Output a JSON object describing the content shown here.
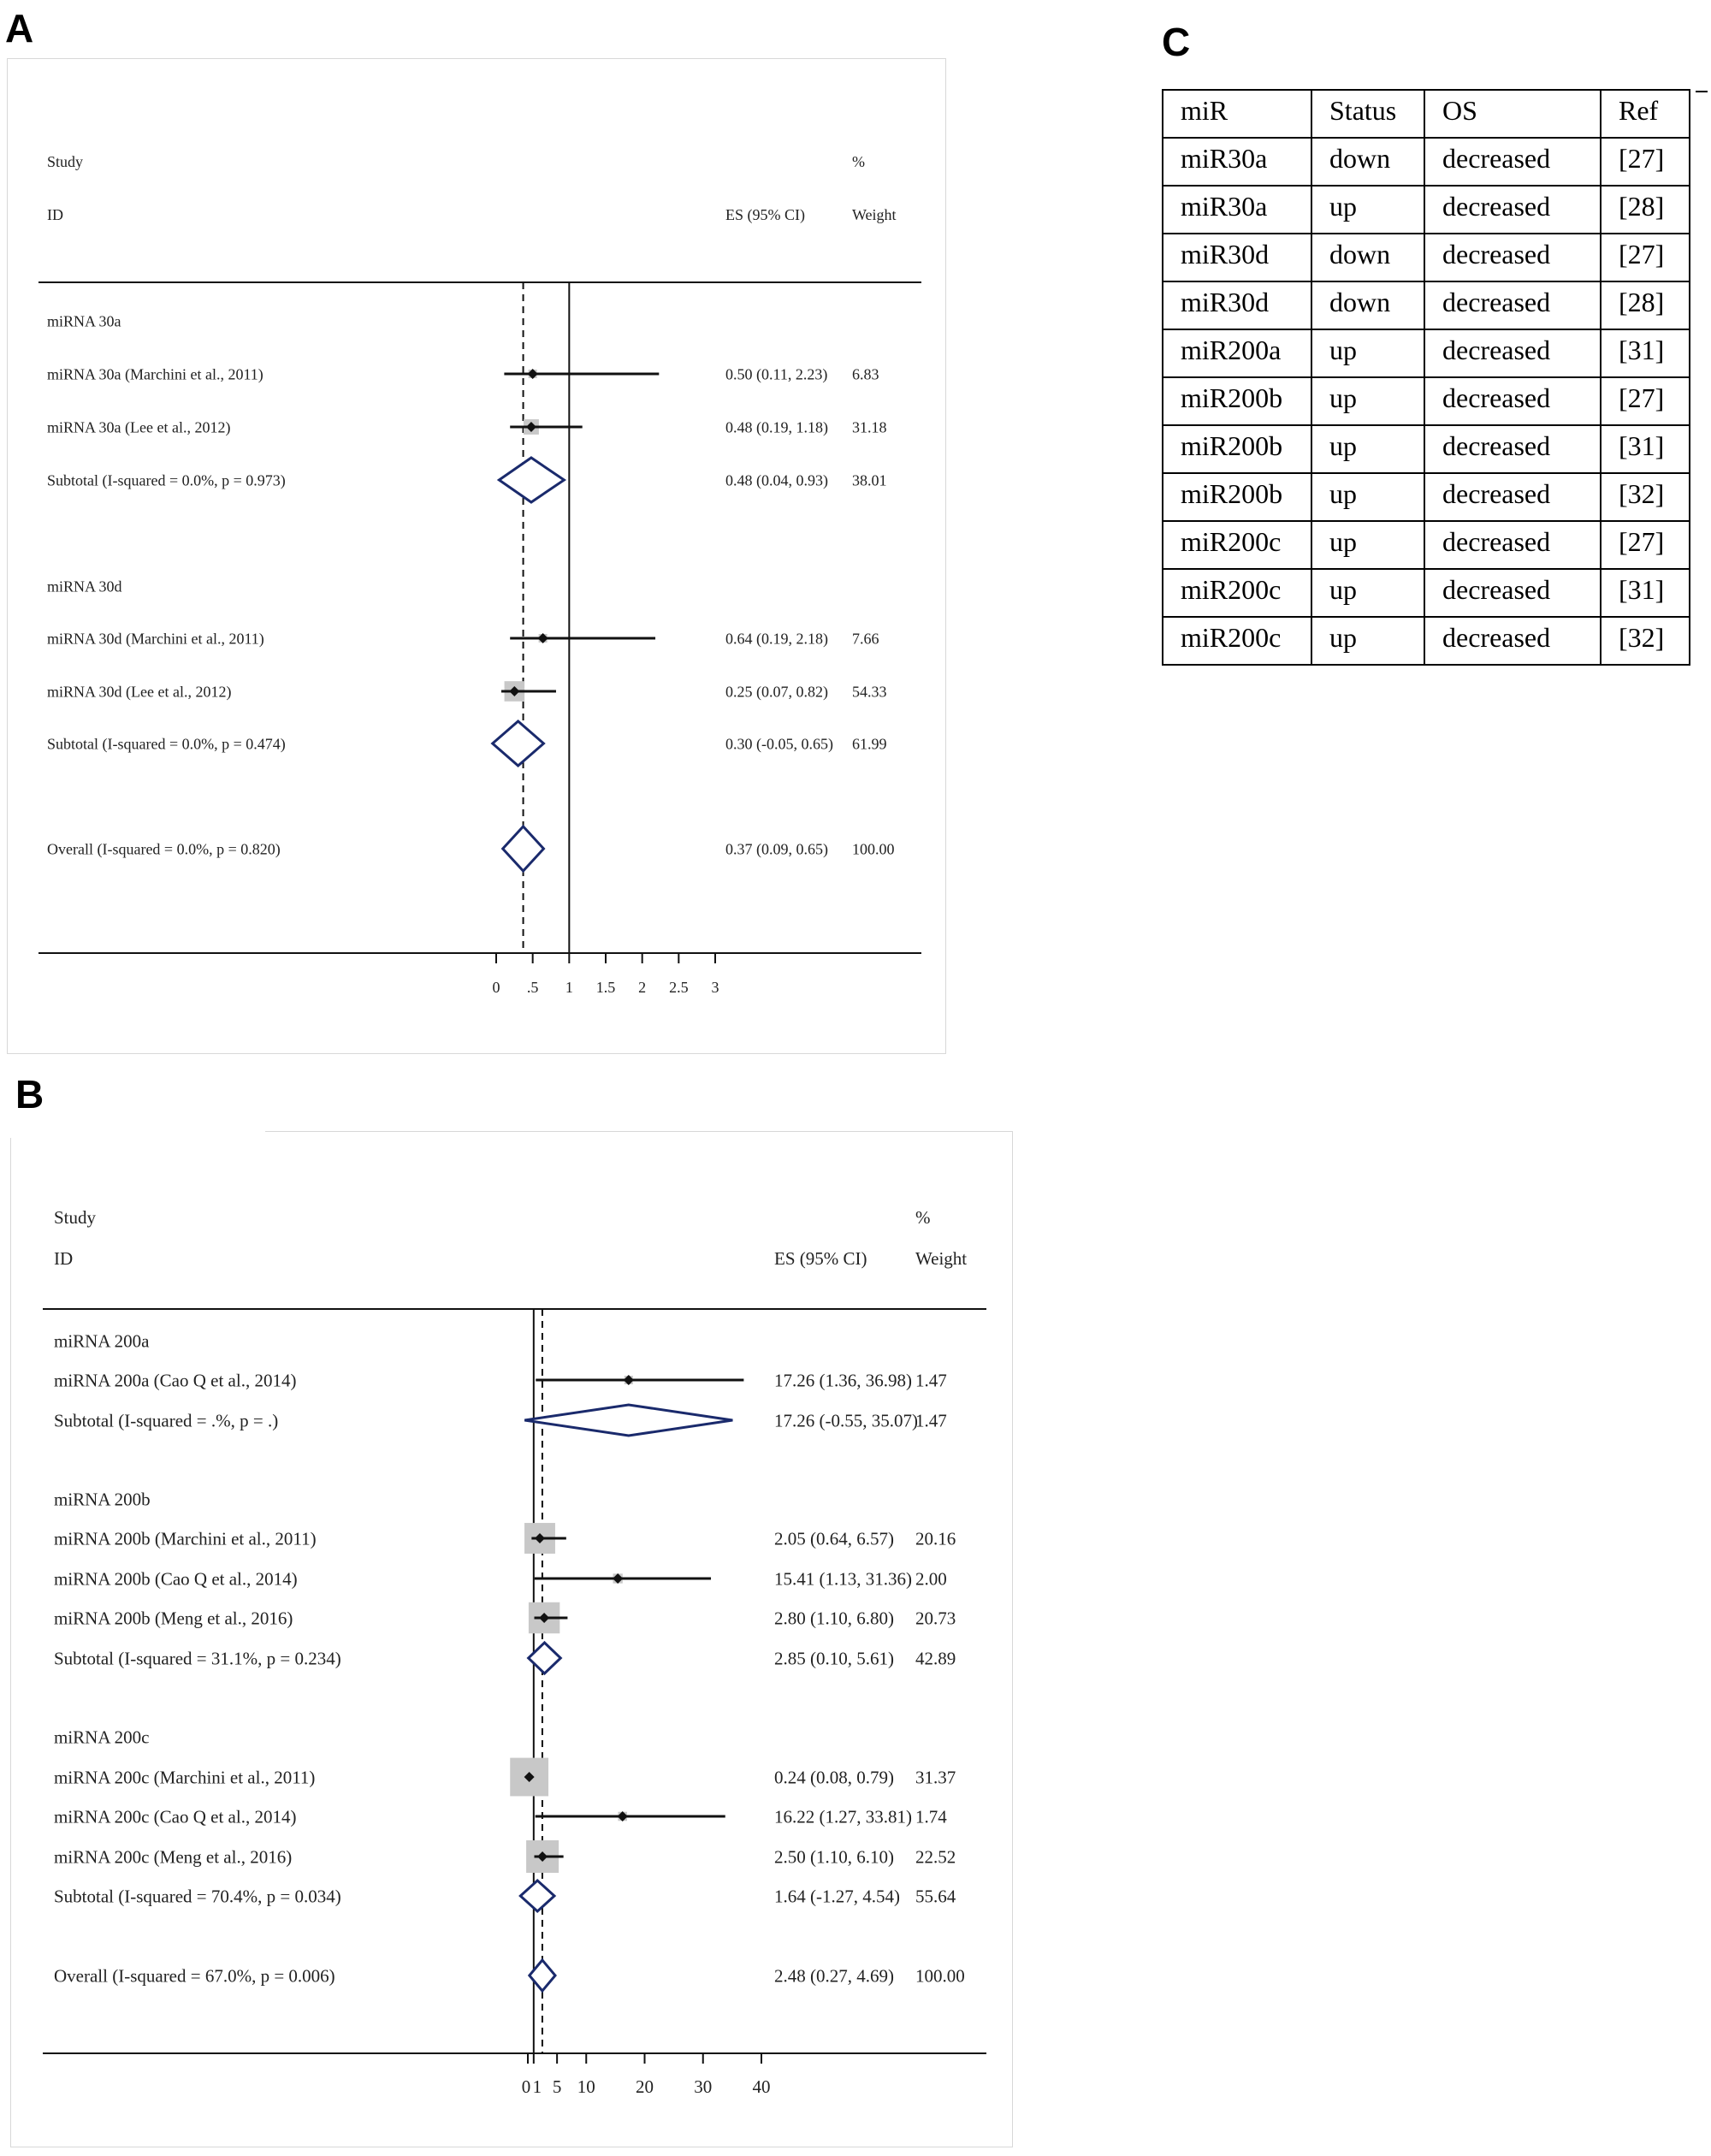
{
  "panels": {
    "a": "A",
    "b": "B",
    "c": "C"
  },
  "chart_data": [
    {
      "type": "forest",
      "panel": "A",
      "header": {
        "study": "Study",
        "id": "ID",
        "es": "ES (95% CI)",
        "pct": "%",
        "weight": "Weight"
      },
      "xlim": [
        0,
        3
      ],
      "null_value": 1,
      "overall_es": 0.37,
      "ticks": [
        0,
        0.5,
        1,
        1.5,
        2,
        2.5,
        3
      ],
      "tick_labels": [
        "0",
        ".5",
        "1",
        "1.5",
        "2",
        "2.5",
        "3"
      ],
      "rows": [
        {
          "kind": "group",
          "label": "miRNA 30a"
        },
        {
          "kind": "study",
          "label": "miRNA 30a (Marchini et al., 2011)",
          "es": 0.5,
          "lo": 0.11,
          "hi": 2.23,
          "es_text": "0.50 (0.11, 2.23)",
          "weight": "6.83"
        },
        {
          "kind": "study",
          "label": "miRNA 30a (Lee et al., 2012)",
          "es": 0.48,
          "lo": 0.19,
          "hi": 1.18,
          "es_text": "0.48 (0.19, 1.18)",
          "weight": "31.18"
        },
        {
          "kind": "subtotal",
          "label": "Subtotal  (I-squared = 0.0%, p = 0.973)",
          "es": 0.48,
          "lo": 0.04,
          "hi": 0.93,
          "es_text": "0.48 (0.04, 0.93)",
          "weight": "38.01"
        },
        {
          "kind": "group",
          "label": "miRNA 30d"
        },
        {
          "kind": "study",
          "label": "miRNA 30d (Marchini et al., 2011)",
          "es": 0.64,
          "lo": 0.19,
          "hi": 2.18,
          "es_text": "0.64 (0.19, 2.18)",
          "weight": "7.66"
        },
        {
          "kind": "study",
          "label": "miRNA 30d (Lee et al., 2012)",
          "es": 0.25,
          "lo": 0.07,
          "hi": 0.82,
          "es_text": "0.25 (0.07, 0.82)",
          "weight": "54.33"
        },
        {
          "kind": "subtotal",
          "label": "Subtotal  (I-squared = 0.0%, p = 0.474)",
          "es": 0.3,
          "lo": -0.05,
          "hi": 0.65,
          "es_text": "0.30 (-0.05, 0.65)",
          "weight": "61.99"
        },
        {
          "kind": "subtotal",
          "label": "Overall  (I-squared = 0.0%, p = 0.820)",
          "es": 0.37,
          "lo": 0.09,
          "hi": 0.65,
          "es_text": "0.37 (0.09, 0.65)",
          "weight": "100.00"
        }
      ]
    },
    {
      "type": "forest",
      "panel": "B",
      "header": {
        "study": "Study",
        "id": "ID",
        "es": "ES (95% CI)",
        "pct": "%",
        "weight": "Weight"
      },
      "xlim": [
        0,
        40
      ],
      "null_value": 1,
      "overall_es": 2.48,
      "ticks": [
        0,
        1,
        5,
        10,
        20,
        30,
        40
      ],
      "tick_labels": [
        "0",
        "1",
        "5",
        "10",
        "20",
        "30",
        "40"
      ],
      "rows": [
        {
          "kind": "group",
          "label": "miRNA 200a"
        },
        {
          "kind": "study",
          "label": "miRNA 200a (Cao Q et al., 2014)",
          "es": 17.26,
          "lo": 1.36,
          "hi": 36.98,
          "es_text": "17.26 (1.36, 36.98)",
          "weight": "1.47"
        },
        {
          "kind": "subtotal",
          "label": "Subtotal  (I-squared = .%, p = .)",
          "es": 17.26,
          "lo": -0.55,
          "hi": 35.07,
          "es_text": "17.26 (-0.55, 35.07)",
          "weight": "1.47"
        },
        {
          "kind": "group",
          "label": "miRNA 200b"
        },
        {
          "kind": "study",
          "label": "miRNA 200b (Marchini et al., 2011)",
          "es": 2.05,
          "lo": 0.64,
          "hi": 6.57,
          "es_text": "2.05 (0.64, 6.57)",
          "weight": "20.16"
        },
        {
          "kind": "study",
          "label": "miRNA 200b (Cao Q et al., 2014)",
          "es": 15.41,
          "lo": 1.13,
          "hi": 31.36,
          "es_text": "15.41 (1.13, 31.36)",
          "weight": "2.00"
        },
        {
          "kind": "study",
          "label": "miRNA 200b (Meng et al., 2016)",
          "es": 2.8,
          "lo": 1.1,
          "hi": 6.8,
          "es_text": "2.80 (1.10, 6.80)",
          "weight": "20.73"
        },
        {
          "kind": "subtotal",
          "label": "Subtotal  (I-squared = 31.1%, p = 0.234)",
          "es": 2.85,
          "lo": 0.1,
          "hi": 5.61,
          "es_text": "2.85 (0.10, 5.61)",
          "weight": "42.89"
        },
        {
          "kind": "group",
          "label": "miRNA 200c"
        },
        {
          "kind": "study",
          "label": "miRNA 200c (Marchini et al., 2011)",
          "es": 0.24,
          "lo": 0.08,
          "hi": 0.79,
          "es_text": "0.24 (0.08, 0.79)",
          "weight": "31.37"
        },
        {
          "kind": "study",
          "label": "miRNA 200c (Cao Q et al., 2014)",
          "es": 16.22,
          "lo": 1.27,
          "hi": 33.81,
          "es_text": "16.22 (1.27, 33.81)",
          "weight": "1.74"
        },
        {
          "kind": "study",
          "label": "miRNA 200c (Meng et al., 2016)",
          "es": 2.5,
          "lo": 1.1,
          "hi": 6.1,
          "es_text": "2.50 (1.10, 6.10)",
          "weight": "22.52"
        },
        {
          "kind": "subtotal",
          "label": "Subtotal  (I-squared = 70.4%, p = 0.034)",
          "es": 1.64,
          "lo": -1.27,
          "hi": 4.54,
          "es_text": "1.64 (-1.27, 4.54)",
          "weight": "55.64"
        },
        {
          "kind": "subtotal",
          "label": "Overall  (I-squared = 67.0%, p = 0.006)",
          "es": 2.48,
          "lo": 0.27,
          "hi": 4.69,
          "es_text": "2.48 (0.27, 4.69)",
          "weight": "100.00"
        }
      ]
    },
    {
      "type": "table",
      "panel": "C",
      "columns": [
        "miR",
        "Status",
        "OS",
        "Ref"
      ],
      "rows": [
        [
          "miR30a",
          "down",
          "decreased",
          "[27]"
        ],
        [
          "miR30a",
          "up",
          "decreased",
          "[28]"
        ],
        [
          "miR30d",
          "down",
          "decreased",
          "[27]"
        ],
        [
          "miR30d",
          "down",
          "decreased",
          "[28]"
        ],
        [
          "miR200a",
          "up",
          "decreased",
          "[31]"
        ],
        [
          "miR200b",
          "up",
          "decreased",
          "[27]"
        ],
        [
          "miR200b",
          "up",
          "decreased",
          "[31]"
        ],
        [
          "miR200b",
          "up",
          "decreased",
          "[32]"
        ],
        [
          "miR200c",
          "up",
          "decreased",
          "[27]"
        ],
        [
          "miR200c",
          "up",
          "decreased",
          "[31]"
        ],
        [
          "miR200c",
          "up",
          "decreased",
          "[32]"
        ]
      ]
    }
  ],
  "colors": {
    "diamond": "#1a2a6c",
    "box": "#c8c8c8",
    "line": "#111111"
  }
}
